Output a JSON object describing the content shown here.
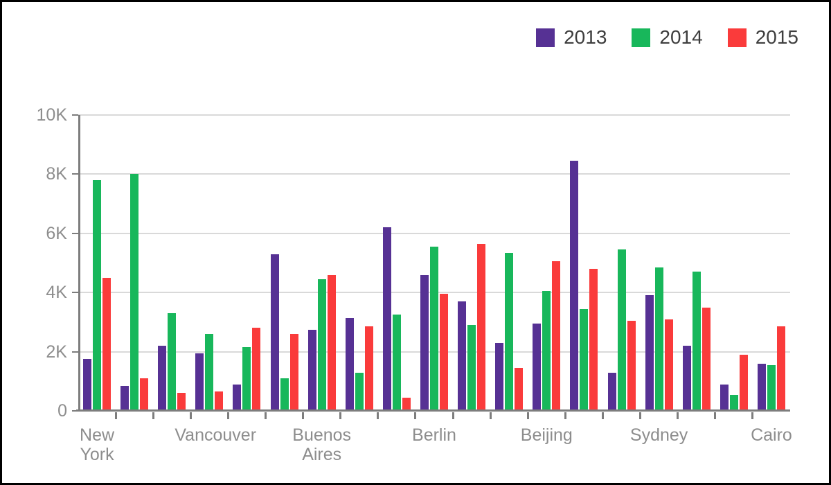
{
  "chart": {
    "legend_items": [
      {
        "label": "2013",
        "color": "#563194"
      },
      {
        "label": "2014",
        "color": "#18b75b"
      },
      {
        "label": "2015",
        "color": "#fa3b3b"
      }
    ]
  },
  "chart_data": {
    "type": "bar",
    "title": "",
    "categories": [
      "New York",
      "",
      "",
      "Vancouver",
      "",
      "",
      "Buenos Aires",
      "",
      "",
      "Berlin",
      "",
      "",
      "Beijing",
      "",
      "",
      "Sydney",
      "",
      "",
      "Cairo"
    ],
    "label_interval": 3,
    "series": [
      {
        "name": "2013",
        "color": "#563194",
        "values": [
          1750,
          850,
          2200,
          1950,
          900,
          5300,
          2750,
          3150,
          6200,
          4600,
          3700,
          2300,
          2950,
          8450,
          1300,
          3900,
          2200,
          900,
          1600
        ]
      },
      {
        "name": "2014",
        "color": "#18b75b",
        "values": [
          7800,
          8000,
          3300,
          2600,
          2150,
          1100,
          4450,
          1300,
          3250,
          5550,
          2900,
          5350,
          4050,
          3450,
          5450,
          4850,
          4700,
          550,
          1550
        ]
      },
      {
        "name": "2015",
        "color": "#fa3b3b",
        "values": [
          4500,
          1100,
          600,
          650,
          2800,
          2600,
          4600,
          2850,
          450,
          3950,
          5650,
          1450,
          5050,
          4800,
          3050,
          3100,
          3500,
          1900,
          2850
        ]
      }
    ],
    "xlabel": "",
    "ylabel": "",
    "ylim": [
      0,
      10000
    ],
    "yticks": [
      {
        "value": 0,
        "label": "0"
      },
      {
        "value": 2000,
        "label": "2K"
      },
      {
        "value": 4000,
        "label": "4K"
      },
      {
        "value": 6000,
        "label": "6K"
      },
      {
        "value": 8000,
        "label": "8K"
      },
      {
        "value": 10000,
        "label": "10K"
      }
    ],
    "grid": "horizontal",
    "legend_position": "top-right"
  }
}
